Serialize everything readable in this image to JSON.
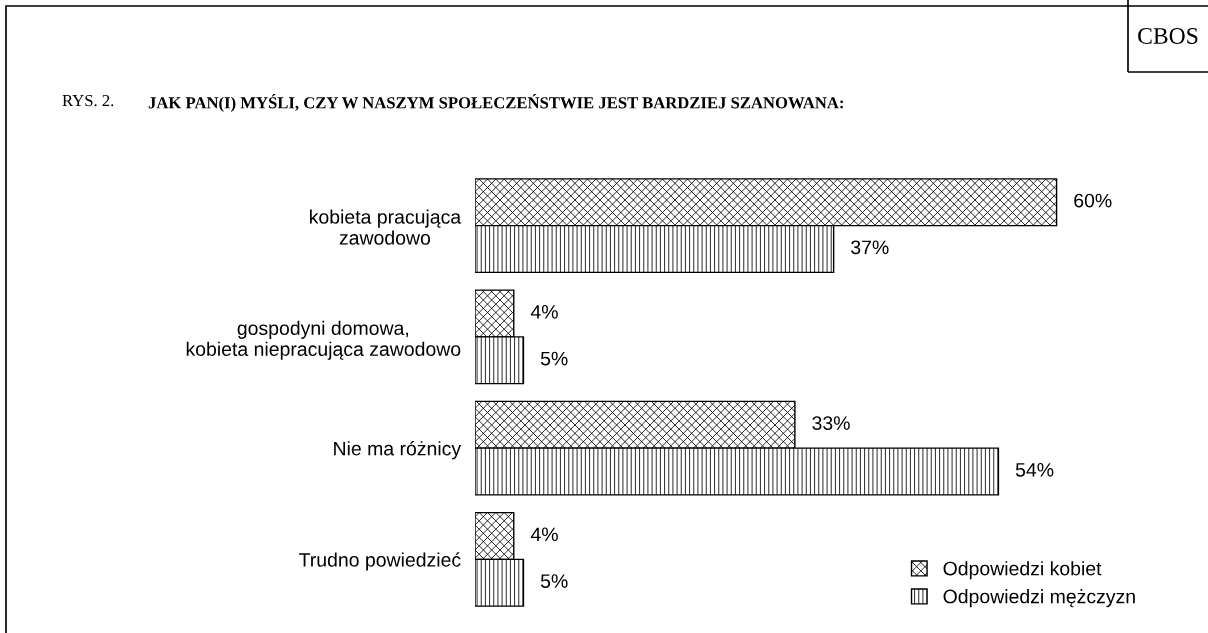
{
  "chart_data": {
    "type": "bar",
    "orientation": "horizontal",
    "title": "JAK PAN(I) MYŚLI, CZY W NASZYM SPOŁECZEŃSTWIE JEST BARDZIEJ SZANOWANA:",
    "annotations": [
      "CBOS",
      "RYS. 2."
    ],
    "categories": [
      "kobieta pracująca\nzawodowo",
      "gospodyni domowa,\nkobieta niepracująca zawodowo",
      "Nie ma różnicy",
      "Trudno powiedzieć"
    ],
    "series": [
      {
        "name": "Odpowiedzi kobiet",
        "color": "#000000",
        "values": [
          60,
          4,
          33,
          4
        ],
        "value_labels": [
          "60%",
          "4%",
          "33%",
          "4%"
        ]
      },
      {
        "name": "Odpowiedzi mężczyzn",
        "color": "#000000",
        "values": [
          37,
          5,
          54,
          5
        ],
        "value_labels": [
          "37%",
          "5%",
          "54%",
          "5%"
        ]
      }
    ],
    "legend": "bottom right",
    "grid": false
  }
}
